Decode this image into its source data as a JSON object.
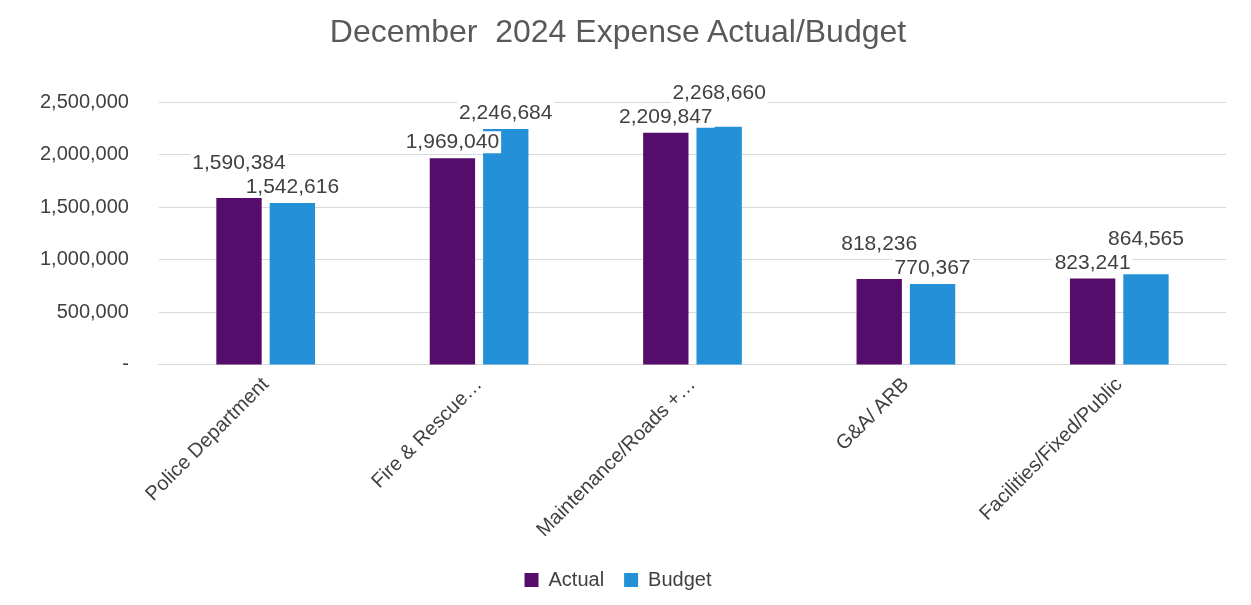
{
  "chart_data": {
    "type": "bar",
    "title": "December  2024 Expense Actual/Budget",
    "categories": [
      "Police Department",
      "Fire & Rescue…",
      "Maintenance/Roads +…",
      "G&A/ ARB",
      "Facilities/Fixed/Public"
    ],
    "series": [
      {
        "name": "Actual",
        "color": "#560c6b",
        "values": [
          1590384,
          1969040,
          2209847,
          818236,
          823241
        ],
        "value_labels": [
          "1,590,384",
          "1,969,040",
          "2,209,847",
          "818,236",
          "823,241"
        ]
      },
      {
        "name": "Budget",
        "color": "#2390d8",
        "values": [
          1542616,
          2246684,
          2268660,
          770367,
          864565
        ],
        "value_labels": [
          "1,542,616",
          "2,246,684",
          "2,268,660",
          "770,367",
          "864,565"
        ]
      }
    ],
    "ylim": [
      0,
      2500000
    ],
    "yticks": [
      {
        "value": 0,
        "label": "-"
      },
      {
        "value": 500000,
        "label": "500,000"
      },
      {
        "value": 1000000,
        "label": "1,000,000"
      },
      {
        "value": 1500000,
        "label": "1,500,000"
      },
      {
        "value": 2000000,
        "label": "2,000,000"
      },
      {
        "value": 2500000,
        "label": "2,500,000"
      }
    ],
    "grid": "y",
    "legend": "bottom"
  }
}
